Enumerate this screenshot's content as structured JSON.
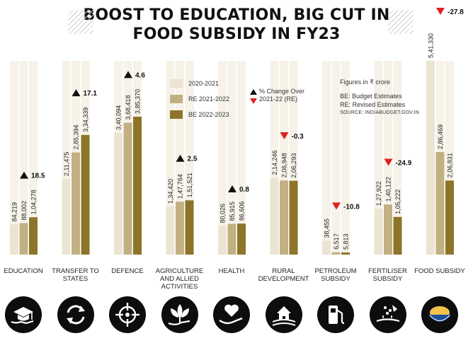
{
  "title": {
    "line1": "BOOST TO EDUCATION, BIG CUT IN",
    "line2": "FOOD SUBSIDY IN FY23"
  },
  "legend": {
    "items": [
      "2020-2021",
      "RE 2021-2022",
      "BE 2022-2023"
    ],
    "change_label": [
      "% Change Over",
      "2021-22 (RE)"
    ]
  },
  "notes": {
    "unit": "Figures in ₹ crore",
    "be": "BE: Budget Estimates",
    "re": "RE: Revised Estimates",
    "source": "SOURCE: INDIABUDGET.GOV.IN"
  },
  "colors": {
    "s2020": "#ece4d2",
    "sRE": "#c2b083",
    "sBE": "#8c7428",
    "track": "#f6f2e8",
    "up": "#111111",
    "down": "#e02020",
    "icon_bg": "#0d0d0d"
  },
  "chart_data": {
    "type": "bar",
    "title": "BOOST TO EDUCATION, BIG CUT IN FOOD SUBSIDY IN FY23",
    "unit": "₹ crore",
    "categories": [
      "EDUCATION",
      "TRANSFER TO STATES",
      "DEFENCE",
      "AGRICULTURE AND ALLIED ACTIVITIES",
      "HEALTH",
      "RURAL DEVELOPMENT",
      "PETROLEUM SUBSIDY",
      "FERTILISER SUBSIDY",
      "FOOD SUBSIDY"
    ],
    "category_lines": [
      [
        "EDUCATION"
      ],
      [
        "TRANSFER TO",
        "STATES"
      ],
      [
        "DEFENCE"
      ],
      [
        "AGRICULTURE",
        "AND ALLIED",
        "ACTIVITIES"
      ],
      [
        "HEALTH"
      ],
      [
        "RURAL",
        "DEVELOPMENT"
      ],
      [
        "PETROLEUM",
        "SUBSIDY"
      ],
      [
        "FERTILISER",
        "SUBSIDY"
      ],
      [
        "FOOD SUBSIDY"
      ]
    ],
    "icons": [
      "graduation-cap-icon",
      "refresh-arrows-icon",
      "crosshair-icon",
      "leaf-hand-icon",
      "heart-hand-icon",
      "farmhouse-icon",
      "fuel-pump-icon",
      "seed-hand-icon",
      "grain-bowl-icon"
    ],
    "series": [
      {
        "name": "2020-2021",
        "values": [
          84219,
          211475,
          340094,
          134420,
          80026,
          214246,
          38455,
          127922,
          541330
        ],
        "labels": [
          "84,219",
          "2,11,475",
          "3,40,094",
          "1,34,420",
          "80,026",
          "2,14,246",
          "38,455",
          "1,27,922",
          "5,41,330"
        ]
      },
      {
        "name": "RE 2021-2022",
        "values": [
          88002,
          285394,
          368418,
          147764,
          85915,
          206948,
          6517,
          140122,
          286469
        ],
        "labels": [
          "88,002",
          "2,85,394",
          "3,68,418",
          "1,47,764",
          "85,915",
          "2,06,948",
          "6,517",
          "1,40,122",
          "2,86,469"
        ]
      },
      {
        "name": "BE 2022-2023",
        "values": [
          104278,
          334339,
          385370,
          151521,
          86606,
          206293,
          5813,
          105222,
          206831
        ],
        "labels": [
          "1,04,278",
          "3,34,339",
          "3,85,370",
          "1,51,521",
          "86,606",
          "2,06,293",
          "5,813",
          "1,05,222",
          "2,06,831"
        ]
      }
    ],
    "pct_change": [
      18.5,
      17.1,
      4.6,
      2.5,
      0.8,
      -0.3,
      -10.8,
      -24.9,
      -27.8
    ],
    "pct_change_labels": [
      "18.5",
      "17.1",
      "4.6",
      "2.5",
      "0.8",
      "-0.3",
      "-10.8",
      "-24.9",
      "-27.8"
    ],
    "ylim": [
      0,
      541330
    ],
    "grid": false,
    "legend_position": "top-center"
  }
}
